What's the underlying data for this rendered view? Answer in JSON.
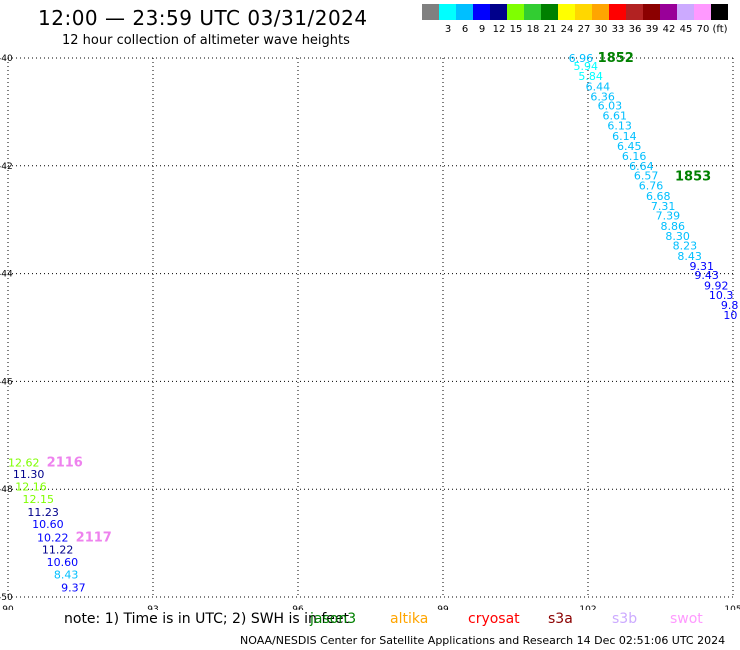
{
  "header": {
    "title": "12:00 — 23:59 UTC 03/31/2024",
    "subtitle": "12 hour collection of altimeter wave heights"
  },
  "legend": {
    "unit_label": "(ft)",
    "items": [
      {
        "label": "",
        "color": "#808080"
      },
      {
        "label": "3",
        "color": "#00ffff"
      },
      {
        "label": "6",
        "color": "#00bfff"
      },
      {
        "label": "9",
        "color": "#0000ff"
      },
      {
        "label": "12",
        "color": "#00008b"
      },
      {
        "label": "15",
        "color": "#7fff00"
      },
      {
        "label": "18",
        "color": "#32cd32"
      },
      {
        "label": "21",
        "color": "#008000"
      },
      {
        "label": "24",
        "color": "#ffff00"
      },
      {
        "label": "27",
        "color": "#ffd700"
      },
      {
        "label": "30",
        "color": "#ffa500"
      },
      {
        "label": "33",
        "color": "#ff0000"
      },
      {
        "label": "36",
        "color": "#b22222"
      },
      {
        "label": "39",
        "color": "#8b0000"
      },
      {
        "label": "42",
        "color": "#990099"
      },
      {
        "label": "45",
        "color": "#ccaaff"
      },
      {
        "label": "70",
        "color": "#ff99ff"
      },
      {
        "label": "",
        "color": "#000000"
      }
    ]
  },
  "chart_data": {
    "type": "scatter",
    "xlim": [
      90,
      105
    ],
    "ylim": [
      -50,
      -40
    ],
    "x_ticks": [
      "90",
      "93",
      "96",
      "99",
      "102",
      "105"
    ],
    "y_ticks": [
      "-40",
      "-42",
      "-44",
      "-46",
      "-48",
      "-50"
    ],
    "grid": true,
    "tracks": [
      {
        "label": "1852",
        "label_color": "#008000",
        "label_x": 102.2,
        "label_y": -40.0
      },
      {
        "label": "1853",
        "label_color": "#008000",
        "label_x": 103.8,
        "label_y": -42.2
      },
      {
        "label": "2116",
        "label_color": "#ee82ee",
        "label_x": 90.8,
        "label_y": -47.5
      },
      {
        "label": "2117",
        "label_color": "#ee82ee",
        "label_x": 91.4,
        "label_y": -48.9
      }
    ],
    "points": [
      {
        "text": "6.96",
        "x": 101.6,
        "y": -40.0,
        "color": "#00bfff"
      },
      {
        "text": "5.94",
        "x": 101.7,
        "y": -40.15,
        "color": "#00ffff"
      },
      {
        "text": "5.84",
        "x": 101.8,
        "y": -40.33,
        "color": "#00ffff"
      },
      {
        "text": "6.44",
        "x": 101.95,
        "y": -40.53,
        "color": "#00bfff"
      },
      {
        "text": "6.36",
        "x": 102.05,
        "y": -40.71,
        "color": "#00bfff"
      },
      {
        "text": "6.03",
        "x": 102.2,
        "y": -40.88,
        "color": "#00bfff"
      },
      {
        "text": "6.61",
        "x": 102.3,
        "y": -41.07,
        "color": "#00bfff"
      },
      {
        "text": "6.13",
        "x": 102.4,
        "y": -41.25,
        "color": "#00bfff"
      },
      {
        "text": "6.14",
        "x": 102.5,
        "y": -41.45,
        "color": "#00bfff"
      },
      {
        "text": "6.45",
        "x": 102.6,
        "y": -41.63,
        "color": "#00bfff"
      },
      {
        "text": "6.16",
        "x": 102.7,
        "y": -41.82,
        "color": "#00bfff"
      },
      {
        "text": "6.64",
        "x": 102.85,
        "y": -42.0,
        "color": "#00bfff"
      },
      {
        "text": "6.57",
        "x": 102.95,
        "y": -42.18,
        "color": "#00bfff"
      },
      {
        "text": "6.76",
        "x": 103.05,
        "y": -42.37,
        "color": "#00bfff"
      },
      {
        "text": "6.68",
        "x": 103.2,
        "y": -42.56,
        "color": "#00bfff"
      },
      {
        "text": "7.31",
        "x": 103.3,
        "y": -42.75,
        "color": "#00bfff"
      },
      {
        "text": "7.39",
        "x": 103.4,
        "y": -42.92,
        "color": "#00bfff"
      },
      {
        "text": "8.86",
        "x": 103.5,
        "y": -43.12,
        "color": "#00bfff"
      },
      {
        "text": "8.30",
        "x": 103.6,
        "y": -43.3,
        "color": "#00bfff"
      },
      {
        "text": "8.23",
        "x": 103.75,
        "y": -43.48,
        "color": "#00bfff"
      },
      {
        "text": "8.43",
        "x": 103.85,
        "y": -43.67,
        "color": "#00bfff"
      },
      {
        "text": "9.31",
        "x": 104.1,
        "y": -43.86,
        "color": "#0000ff"
      },
      {
        "text": "9.43",
        "x": 104.2,
        "y": -44.03,
        "color": "#0000ff"
      },
      {
        "text": "9.92",
        "x": 104.4,
        "y": -44.22,
        "color": "#0000ff"
      },
      {
        "text": "10.3",
        "x": 104.5,
        "y": -44.4,
        "color": "#0000ff"
      },
      {
        "text": "9.8",
        "x": 104.75,
        "y": -44.58,
        "color": "#0000ff"
      },
      {
        "text": "10",
        "x": 104.8,
        "y": -44.77,
        "color": "#0000ff"
      },
      {
        "text": "12.62",
        "x": 90.0,
        "y": -47.5,
        "color": "#7fff00"
      },
      {
        "text": "11.30",
        "x": 90.1,
        "y": -47.72,
        "color": "#00008b"
      },
      {
        "text": "12.16",
        "x": 90.15,
        "y": -47.95,
        "color": "#7fff00"
      },
      {
        "text": "12.15",
        "x": 90.3,
        "y": -48.18,
        "color": "#7fff00"
      },
      {
        "text": "11.23",
        "x": 90.4,
        "y": -48.42,
        "color": "#00008b"
      },
      {
        "text": "10.60",
        "x": 90.5,
        "y": -48.65,
        "color": "#0000ff"
      },
      {
        "text": "10.22",
        "x": 90.6,
        "y": -48.9,
        "color": "#0000ff"
      },
      {
        "text": "11.22",
        "x": 90.7,
        "y": -49.12,
        "color": "#00008b"
      },
      {
        "text": "10.60",
        "x": 90.8,
        "y": -49.35,
        "color": "#0000ff"
      },
      {
        "text": "8.43",
        "x": 90.95,
        "y": -49.58,
        "color": "#00bfff"
      },
      {
        "text": "9.37",
        "x": 91.1,
        "y": -49.82,
        "color": "#0000ff"
      }
    ]
  },
  "note": "note: 1) Time is in UTC; 2) SWH is in feet",
  "satellites": [
    {
      "name": "jason3",
      "color": "#008000"
    },
    {
      "name": "altika",
      "color": "#ffa500"
    },
    {
      "name": "cryosat",
      "color": "#ff0000"
    },
    {
      "name": "s3a",
      "color": "#8b0000"
    },
    {
      "name": "s3b",
      "color": "#ccaaff"
    },
    {
      "name": "swot",
      "color": "#ff99ff"
    }
  ],
  "footer": "NOAA/NESDIS Center for Satellite Applications and Research   14 Dec 02:51:06 UTC 2024"
}
